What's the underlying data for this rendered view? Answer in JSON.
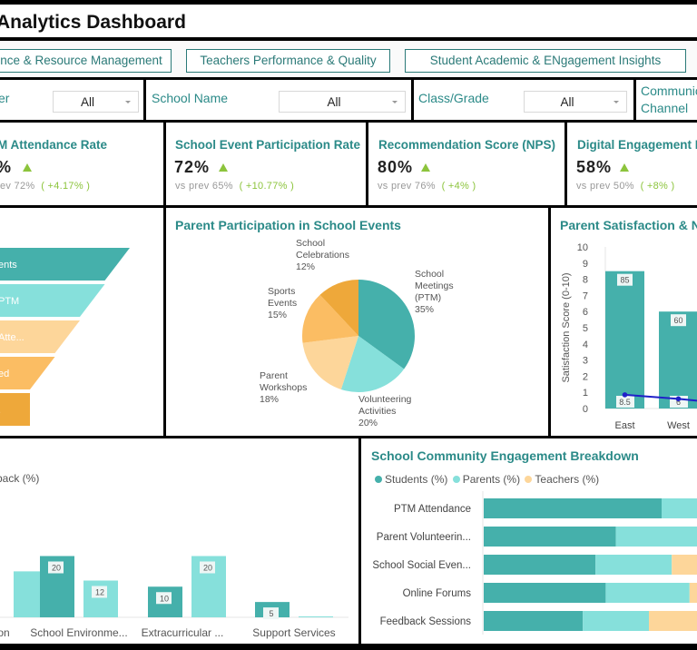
{
  "header": {
    "title": "Parent & Community Analytics Dashboard",
    "title_visible": "Analytics Dashboard"
  },
  "nav": {
    "tabs": [
      {
        "label": "Attendance & Resource Management",
        "visible": "nce & Resource Management"
      },
      {
        "label": "Teachers Performance & Quality"
      },
      {
        "label": "Student Academic & ENgagement Insights"
      }
    ]
  },
  "filters": [
    {
      "label": "er",
      "value": "All"
    },
    {
      "label": "School Name",
      "value": "All"
    },
    {
      "label": "Class/Grade",
      "value": "All"
    },
    {
      "label": "Communication Channel",
      "label_line1": "Communic",
      "label_line2": "Channel"
    }
  ],
  "kpis": [
    {
      "title": "M Attendance Rate",
      "value": "%",
      "prev_label": "rev",
      "prev_value": "72%",
      "delta": "( +4.17% )",
      "trend": "up"
    },
    {
      "title": "School Event Participation Rate",
      "value": "72%",
      "prev_label": "vs prev",
      "prev_value": "65%",
      "delta": "( +10.77% )",
      "trend": "up"
    },
    {
      "title": "Recommendation Score (NPS)",
      "value": "80%",
      "prev_label": "vs prev",
      "prev_value": "76%",
      "delta": "( +4% )",
      "trend": "up"
    },
    {
      "title": "Digital Engagement Rat",
      "value": "58%",
      "prev_label": "vs prev",
      "prev_value": "50%",
      "delta": "( +8% )",
      "trend": "up"
    }
  ],
  "colors": {
    "accent": "#2b8a88",
    "teal_dark": "#45b0ab",
    "teal_light": "#86e0db",
    "peach_light": "#fdd69a",
    "orange_mid": "#fbbd63",
    "orange_dark": "#eea83a",
    "trend_up": "#8cc43c",
    "line_blue": "#2020c8"
  },
  "chart_data": [
    {
      "id": "funnel",
      "type": "funnel",
      "title": "",
      "stages": [
        {
          "label": "ents",
          "relative_width": 1.0
        },
        {
          "label": "PTM",
          "relative_width": 0.79
        },
        {
          "label": "Atte...",
          "relative_width": 0.6
        },
        {
          "label": "ed",
          "relative_width": 0.43
        },
        {
          "label": ".",
          "relative_width": 0.28
        }
      ]
    },
    {
      "id": "pie",
      "type": "pie",
      "title": "Parent Participation in School Events",
      "slices": [
        {
          "label": "School Meetings (PTM)",
          "lines": [
            "School",
            "Meetings",
            "(PTM)",
            "35%"
          ],
          "value": 35
        },
        {
          "label": "Volunteering Activities",
          "lines": [
            "Volunteering",
            "Activities",
            "20%"
          ],
          "value": 20
        },
        {
          "label": "Parent Workshops",
          "lines": [
            "Parent",
            "Workshops",
            "18%"
          ],
          "value": 18
        },
        {
          "label": "Sports Events",
          "lines": [
            "Sports",
            "Events",
            "15%"
          ],
          "value": 15
        },
        {
          "label": "School Celebrations",
          "lines": [
            "School",
            "Celebrations",
            "12%"
          ],
          "value": 12
        }
      ]
    },
    {
      "id": "satisfaction",
      "type": "bar",
      "title": "Parent Satisfaction & Net",
      "ylabel": "Satisfaction Score (0-10)",
      "ylim": [
        0,
        10
      ],
      "yticks": [
        0,
        1,
        2,
        3,
        4,
        5,
        6,
        7,
        8,
        9,
        10
      ],
      "categories": [
        "East",
        "West"
      ],
      "series": [
        {
          "name": "Satisfaction",
          "type": "bar",
          "values": [
            8.5,
            6
          ],
          "labels": [
            "8.5",
            "6"
          ]
        },
        {
          "name": "NPS",
          "type": "line",
          "values": [
            85,
            60
          ],
          "labels": [
            "85",
            "60"
          ],
          "plotted": [
            0.85,
            0.6
          ]
        }
      ]
    },
    {
      "id": "feedback",
      "type": "bar",
      "title": "",
      "subtitle": "back (%)",
      "categories": [
        "on",
        "School Environme...",
        "Extracurricular ...",
        "Support Services"
      ],
      "series": [
        {
          "name": "Series 1",
          "values": [
            null,
            20,
            10,
            5
          ],
          "labels": [
            "",
            "20",
            "10",
            "5"
          ]
        },
        {
          "name": "Series 2",
          "values": [
            15,
            12,
            20,
            0.3
          ],
          "labels": [
            "",
            "12",
            "20",
            ""
          ]
        }
      ],
      "ylim": [
        0,
        40
      ]
    },
    {
      "id": "engagement",
      "type": "bar",
      "orientation": "horizontal-stacked",
      "title": "School Community Engagement Breakdown",
      "legend": [
        "Students (%)",
        "Parents (%)",
        "Teachers (%)"
      ],
      "categories": [
        "PTM Attendance",
        "Parent Volunteerin...",
        "School Social Even...",
        "Online Forums",
        "Feedback Sessions"
      ],
      "series": [
        {
          "name": "Students (%)",
          "values": [
            70,
            52,
            44,
            48,
            39
          ]
        },
        {
          "name": "Parents (%)",
          "values": [
            30,
            39,
            30,
            33,
            26
          ]
        },
        {
          "name": "Teachers (%)",
          "values": [
            0,
            9,
            26,
            19,
            35
          ]
        }
      ]
    }
  ]
}
